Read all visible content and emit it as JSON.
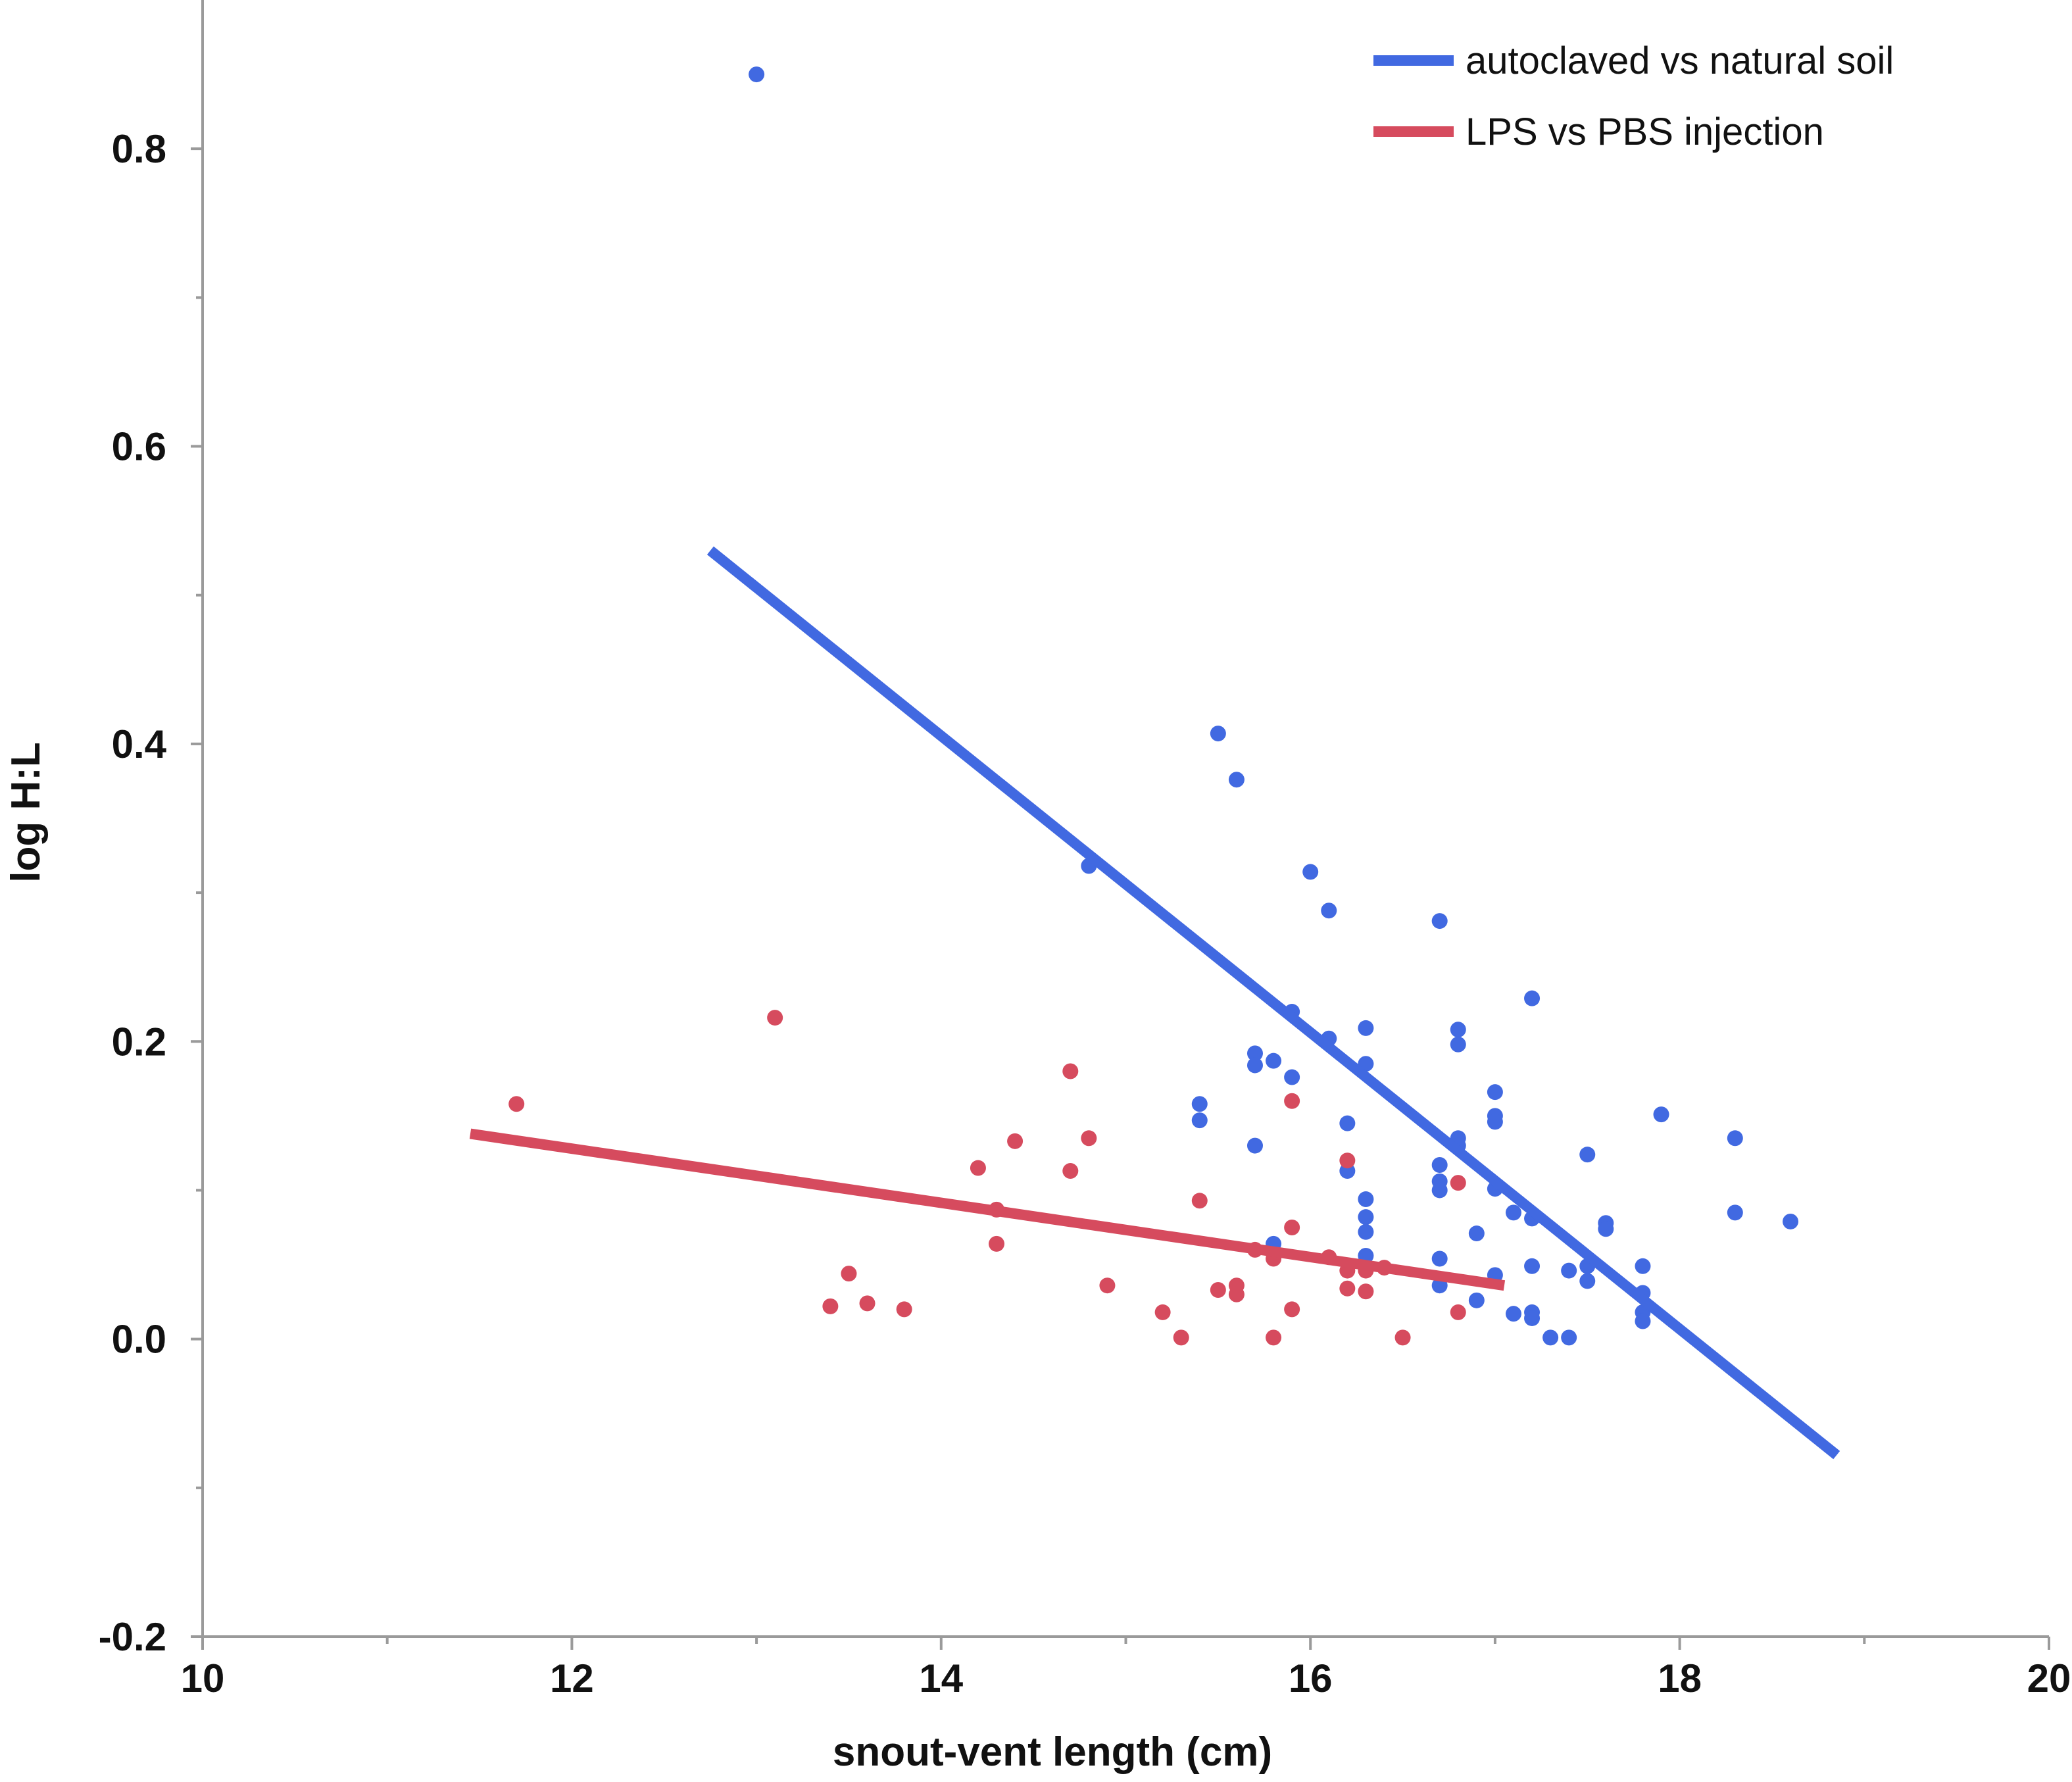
{
  "chart_data": {
    "type": "scatter",
    "xlabel": "snout-vent length (cm)",
    "ylabel": "log H:L",
    "xlim": [
      10,
      20
    ],
    "ylim": [
      -0.2,
      0.9
    ],
    "x_ticks": [
      10,
      12,
      14,
      16,
      18,
      20
    ],
    "x_tick_labels": [
      "10",
      "12",
      "14",
      "16",
      "18",
      "20"
    ],
    "y_ticks": [
      -0.2,
      0.0,
      0.2,
      0.4,
      0.6,
      0.8
    ],
    "y_tick_labels": [
      "-0.2",
      "0.0",
      "0.2",
      "0.4",
      "0.6",
      "0.8"
    ],
    "grid": false,
    "legend_position": "top-right",
    "series": [
      {
        "name": "autoclaved vs natural soil",
        "color": "#4169E1",
        "points": [
          [
            13.0,
            0.85
          ],
          [
            14.8,
            0.318
          ],
          [
            15.5,
            0.407
          ],
          [
            15.6,
            0.376
          ],
          [
            16.0,
            0.314
          ],
          [
            16.1,
            0.288
          ],
          [
            16.7,
            0.281
          ],
          [
            17.2,
            0.229
          ],
          [
            15.9,
            0.22
          ],
          [
            16.3,
            0.209
          ],
          [
            16.1,
            0.202
          ],
          [
            16.8,
            0.208
          ],
          [
            16.8,
            0.198
          ],
          [
            15.7,
            0.192
          ],
          [
            15.7,
            0.184
          ],
          [
            15.8,
            0.187
          ],
          [
            15.9,
            0.176
          ],
          [
            16.3,
            0.185
          ],
          [
            17.0,
            0.166
          ],
          [
            17.0,
            0.15
          ],
          [
            17.0,
            0.146
          ],
          [
            15.4,
            0.158
          ],
          [
            15.4,
            0.147
          ],
          [
            15.7,
            0.13
          ],
          [
            16.2,
            0.145
          ],
          [
            16.8,
            0.135
          ],
          [
            16.8,
            0.13
          ],
          [
            17.9,
            0.151
          ],
          [
            18.3,
            0.135
          ],
          [
            17.5,
            0.124
          ],
          [
            16.2,
            0.113
          ],
          [
            16.7,
            0.117
          ],
          [
            16.7,
            0.106
          ],
          [
            16.7,
            0.1
          ],
          [
            17.0,
            0.101
          ],
          [
            16.3,
            0.094
          ],
          [
            16.3,
            0.082
          ],
          [
            16.3,
            0.072
          ],
          [
            17.1,
            0.085
          ],
          [
            17.2,
            0.081
          ],
          [
            18.3,
            0.085
          ],
          [
            18.6,
            0.079
          ],
          [
            17.6,
            0.078
          ],
          [
            17.6,
            0.074
          ],
          [
            16.9,
            0.071
          ],
          [
            15.8,
            0.064
          ],
          [
            16.3,
            0.056
          ],
          [
            16.7,
            0.054
          ],
          [
            17.2,
            0.049
          ],
          [
            17.4,
            0.046
          ],
          [
            17.5,
            0.049
          ],
          [
            17.5,
            0.039
          ],
          [
            17.8,
            0.049
          ],
          [
            16.7,
            0.036
          ],
          [
            17.0,
            0.043
          ],
          [
            16.9,
            0.026
          ],
          [
            17.8,
            0.031
          ],
          [
            17.1,
            0.017
          ],
          [
            17.2,
            0.018
          ],
          [
            17.2,
            0.014
          ],
          [
            17.8,
            0.018
          ],
          [
            17.8,
            0.012
          ],
          [
            17.3,
            0.001
          ],
          [
            17.4,
            0.001
          ]
        ],
        "fit": [
          [
            12.75,
            0.53
          ],
          [
            18.85,
            -0.078
          ]
        ]
      },
      {
        "name": "LPS vs PBS injection",
        "color": "#D64B5E",
        "points": [
          [
            11.7,
            0.158
          ],
          [
            13.1,
            0.216
          ],
          [
            13.4,
            0.022
          ],
          [
            13.5,
            0.044
          ],
          [
            13.6,
            0.024
          ],
          [
            13.8,
            0.02
          ],
          [
            14.2,
            0.115
          ],
          [
            14.3,
            0.087
          ],
          [
            14.3,
            0.064
          ],
          [
            14.4,
            0.133
          ],
          [
            14.7,
            0.18
          ],
          [
            14.7,
            0.113
          ],
          [
            14.8,
            0.135
          ],
          [
            14.9,
            0.036
          ],
          [
            15.2,
            0.018
          ],
          [
            15.3,
            0.001
          ],
          [
            15.4,
            0.093
          ],
          [
            15.5,
            0.033
          ],
          [
            15.6,
            0.036
          ],
          [
            15.6,
            0.03
          ],
          [
            15.7,
            0.06
          ],
          [
            15.8,
            0.054
          ],
          [
            15.8,
            0.001
          ],
          [
            15.9,
            0.16
          ],
          [
            15.9,
            0.075
          ],
          [
            15.9,
            0.02
          ],
          [
            16.1,
            0.055
          ],
          [
            16.2,
            0.12
          ],
          [
            16.2,
            0.046
          ],
          [
            16.2,
            0.034
          ],
          [
            16.3,
            0.046
          ],
          [
            16.3,
            0.032
          ],
          [
            16.4,
            0.048
          ],
          [
            16.5,
            0.001
          ],
          [
            16.8,
            0.105
          ],
          [
            16.8,
            0.018
          ]
        ],
        "fit": [
          [
            11.45,
            0.138
          ],
          [
            17.05,
            0.036
          ]
        ]
      }
    ]
  }
}
